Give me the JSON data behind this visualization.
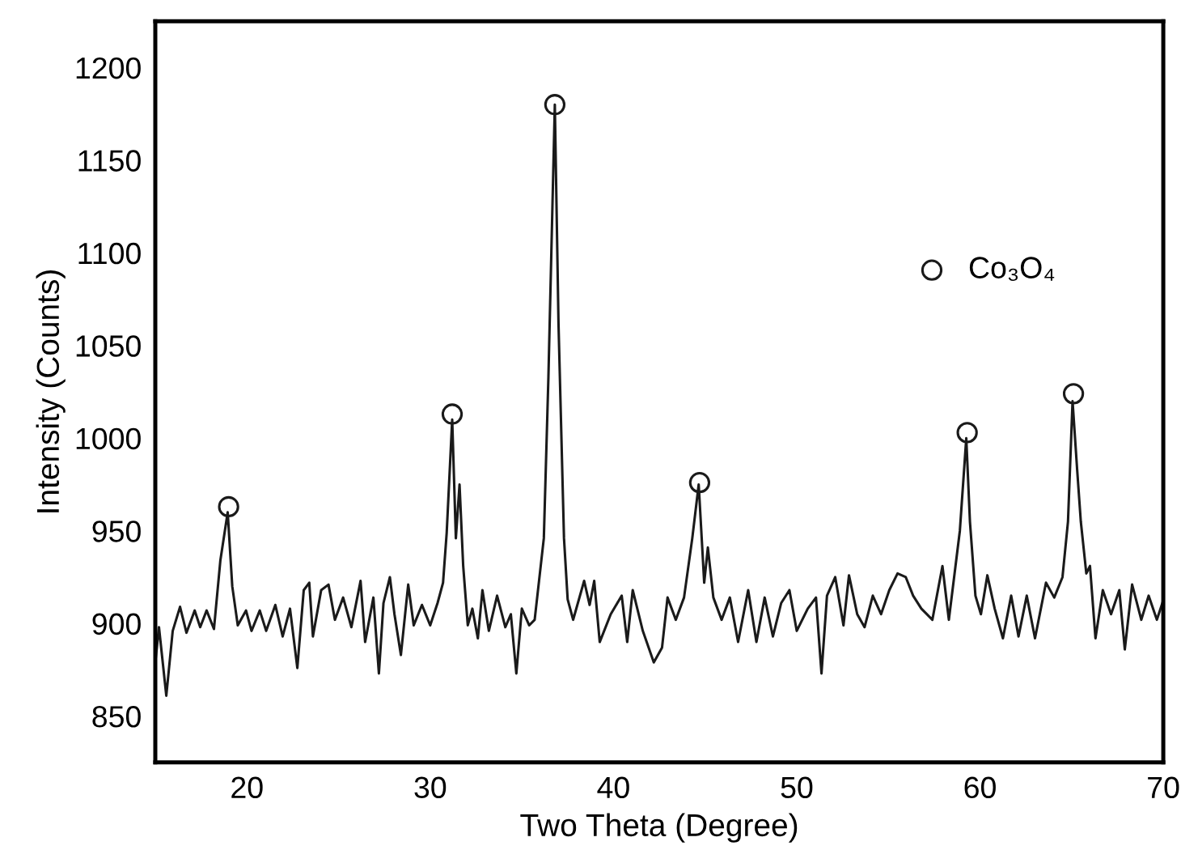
{
  "chart_data": {
    "type": "line",
    "xlabel": "Two Theta (Degree)",
    "ylabel": "Intensity (Counts)",
    "xlim": [
      15,
      70
    ],
    "ylim": [
      825,
      1225
    ],
    "xticks": [
      20,
      30,
      40,
      50,
      60,
      70
    ],
    "yticks": [
      850,
      900,
      950,
      1000,
      1050,
      1100,
      1150,
      1200
    ],
    "grid": false,
    "legend": "top right",
    "series": [
      {
        "color": "#1a1a1a",
        "marker": "none",
        "x": [
          15.0,
          15.2,
          15.6,
          15.95,
          16.35,
          16.7,
          17.15,
          17.45,
          17.8,
          18.2,
          18.55,
          18.95,
          19.2,
          19.5,
          19.95,
          20.25,
          20.7,
          21.05,
          21.55,
          21.95,
          22.35,
          22.75,
          23.1,
          23.4,
          23.6,
          24.05,
          24.45,
          24.8,
          25.25,
          25.7,
          26.2,
          26.45,
          26.9,
          27.2,
          27.45,
          27.8,
          28.05,
          28.4,
          28.8,
          29.1,
          29.55,
          30.0,
          30.4,
          30.7,
          30.9,
          31.2,
          31.4,
          31.6,
          31.8,
          32.05,
          32.3,
          32.6,
          32.85,
          33.2,
          33.65,
          34.1,
          34.4,
          34.7,
          35.0,
          35.4,
          35.7,
          36.2,
          36.45,
          36.8,
          37.0,
          37.3,
          37.5,
          37.8,
          38.4,
          38.7,
          38.95,
          39.25,
          39.85,
          40.45,
          40.75,
          41.05,
          41.6,
          42.2,
          42.65,
          42.95,
          43.4,
          43.85,
          44.3,
          44.65,
          44.95,
          45.15,
          45.45,
          45.9,
          46.35,
          46.8,
          47.35,
          47.8,
          48.25,
          48.7,
          49.15,
          49.6,
          50.0,
          50.6,
          51.05,
          51.35,
          51.65,
          52.1,
          52.55,
          52.85,
          53.3,
          53.7,
          54.15,
          54.6,
          55.05,
          55.5,
          55.95,
          56.35,
          56.8,
          57.4,
          57.95,
          58.3,
          58.65,
          58.9,
          59.25,
          59.45,
          59.75,
          60.05,
          60.4,
          60.8,
          61.25,
          61.7,
          62.1,
          62.55,
          63.0,
          63.6,
          64.05,
          64.5,
          64.8,
          65.05,
          65.3,
          65.5,
          65.8,
          66.0,
          66.3,
          66.7,
          67.15,
          67.6,
          67.9,
          68.3,
          68.8,
          69.2,
          69.65,
          69.95
        ],
        "values": [
          879,
          898,
          861,
          896,
          909,
          895,
          907,
          898,
          907,
          897,
          934,
          960,
          920,
          899,
          907,
          896,
          907,
          896,
          910,
          893,
          908,
          876,
          918,
          922,
          893,
          918,
          921,
          902,
          914,
          898,
          923,
          890,
          914,
          873,
          911,
          925,
          905,
          883,
          921,
          899,
          910,
          899,
          911,
          922,
          949,
          1010,
          946,
          975,
          931,
          899,
          908,
          892,
          918,
          896,
          915,
          898,
          905,
          873,
          908,
          899,
          902,
          946,
          1033,
          1180,
          1062,
          946,
          913,
          902,
          923,
          910,
          923,
          890,
          905,
          915,
          890,
          918,
          896,
          879,
          887,
          914,
          902,
          914,
          946,
          975,
          922,
          941,
          914,
          902,
          914,
          890,
          918,
          890,
          914,
          893,
          911,
          918,
          896,
          908,
          914,
          873,
          915,
          925,
          899,
          926,
          905,
          898,
          915,
          905,
          918,
          927,
          925,
          915,
          908,
          902,
          931,
          902,
          930,
          950,
          1000,
          955,
          915,
          905,
          926,
          908,
          892,
          915,
          893,
          915,
          892,
          922,
          914,
          925,
          955,
          1020,
          983,
          955,
          927,
          931,
          892,
          918,
          905,
          918,
          886,
          921,
          902,
          915,
          902,
          911
        ]
      },
      {
        "type": "scatter",
        "name": "Co₃O₄",
        "color": "#1a1a1a",
        "marker": "circle",
        "x": [
          19.0,
          31.2,
          36.8,
          44.7,
          59.3,
          65.1
        ],
        "values": [
          963,
          1013,
          1180,
          976,
          1003,
          1024
        ]
      }
    ]
  }
}
